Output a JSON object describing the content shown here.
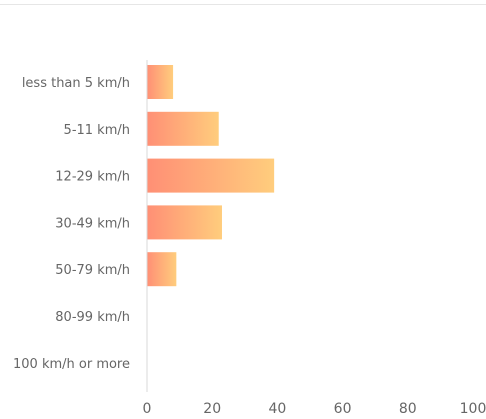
{
  "chart_data": {
    "type": "bar",
    "orientation": "horizontal",
    "categories": [
      "less than 5 km/h",
      "5-11 km/h",
      "12-29 km/h",
      "30-49 km/h",
      "50-79 km/h",
      "80-99 km/h",
      "100 km/h or more"
    ],
    "values": [
      8,
      22,
      39,
      23,
      9,
      0,
      0
    ],
    "xlim": [
      0,
      100
    ],
    "xticks": [
      "0",
      "20",
      "40",
      "60",
      "80",
      "100"
    ],
    "grid": false,
    "legend": "none",
    "colors": {
      "bar_start": "#ff8f75",
      "bar_end": "#ffcd7d",
      "axis": "#d9d9d9",
      "label": "#666666"
    }
  }
}
